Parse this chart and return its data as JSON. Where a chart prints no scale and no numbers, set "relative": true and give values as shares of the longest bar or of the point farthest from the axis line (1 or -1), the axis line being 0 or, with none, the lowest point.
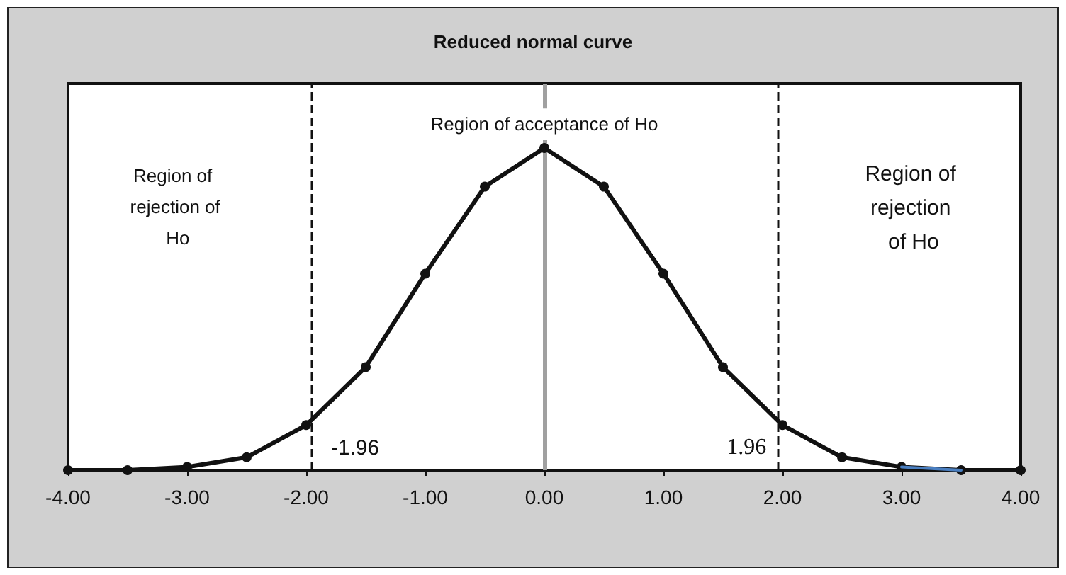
{
  "chart_data": {
    "type": "line",
    "title": "Reduced normal curve",
    "relative": true,
    "x": [
      -4,
      -3.5,
      -3,
      -2.5,
      -2,
      -1.5,
      -1,
      -0.5,
      0,
      0.5,
      1,
      1.5,
      2,
      2.5,
      3,
      3.5,
      4
    ],
    "series": [
      {
        "color": "#111111",
        "values": [
          0.0,
          0.0,
          0.01,
          0.04,
          0.14,
          0.32,
          0.61,
          0.88,
          1,
          0.88,
          0.61,
          0.32,
          0.14,
          0.04,
          0.01,
          0.0,
          0.0
        ],
        "marker": "circle"
      },
      {
        "type": "line",
        "color": "#4a7fc1",
        "x": [
          3,
          3.5
        ],
        "values": [
          0.01,
          0.0
        ],
        "marker": "none"
      }
    ],
    "xlim": [
      -4,
      4
    ],
    "xticks": [
      {
        "value": -4,
        "label": "-4.00"
      },
      {
        "value": -3,
        "label": "-3.00"
      },
      {
        "value": -2,
        "label": "-2.00"
      },
      {
        "value": -1,
        "label": "-1.00"
      },
      {
        "value": 0,
        "label": "0.00"
      },
      {
        "value": 1,
        "label": "1.00"
      },
      {
        "value": 2,
        "label": "2.00"
      },
      {
        "value": 3,
        "label": "3.00"
      },
      {
        "value": 4,
        "label": "4.00"
      }
    ],
    "ref_lines": [
      {
        "axis": "x",
        "value": -1.96,
        "label": "-1.96",
        "line_style": "dashed",
        "color": "#111111"
      },
      {
        "axis": "x",
        "value": 1.96,
        "label": "1.96",
        "line_style": "dashed",
        "color": "#111111"
      },
      {
        "axis": "x",
        "value": 0,
        "line_style": "solid",
        "color": "#a0a0a0"
      }
    ],
    "annotations": [
      "Region of rejection of Ho",
      "Region of acceptance of Ho",
      "Region of rejection of Ho"
    ],
    "grid": false,
    "tick_labels": "x"
  }
}
